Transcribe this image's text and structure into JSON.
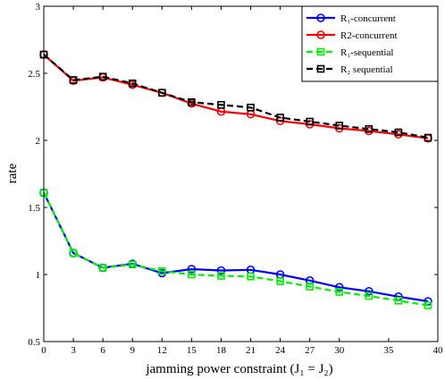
{
  "chart_data": {
    "type": "line",
    "xlabel": "jamming power constraint (J₁ = J₂)",
    "ylabel": "rate",
    "xlim": [
      0,
      40
    ],
    "ylim": [
      0.5,
      3
    ],
    "xticks": [
      0,
      3,
      6,
      9,
      12,
      15,
      18,
      21,
      24,
      27,
      30,
      35,
      40
    ],
    "yticks": [
      0.5,
      1,
      1.5,
      2,
      2.5,
      3
    ],
    "grid": false,
    "legend_position": "top-right",
    "x": [
      0,
      3,
      6,
      9,
      12,
      15,
      18,
      21,
      24,
      27,
      30,
      33,
      36,
      39
    ],
    "series": [
      {
        "name": "R₁-concurrent",
        "color": "#0000ff",
        "line_style": "solid",
        "marker": "circle",
        "values": [
          1.61,
          1.16,
          1.05,
          1.08,
          1.01,
          1.04,
          1.03,
          1.035,
          1.0,
          0.955,
          0.905,
          0.875,
          0.835,
          0.8
        ]
      },
      {
        "name": "R2-concurrent",
        "color": "#ff0000",
        "line_style": "solid",
        "marker": "circle",
        "values": [
          2.64,
          2.445,
          2.47,
          2.415,
          2.355,
          2.275,
          2.215,
          2.195,
          2.145,
          2.12,
          2.09,
          2.07,
          2.045,
          2.015
        ]
      },
      {
        "name": "R₁-sequential",
        "color": "#00ee00",
        "line_style": "dashed",
        "marker": "square",
        "values": [
          1.61,
          1.16,
          1.05,
          1.075,
          1.025,
          1.0,
          0.99,
          0.985,
          0.95,
          0.91,
          0.87,
          0.84,
          0.805,
          0.77
        ]
      },
      {
        "name": "R₂ sequential",
        "color": "#000000",
        "line_style": "dashed",
        "marker": "square",
        "values": [
          2.64,
          2.45,
          2.475,
          2.425,
          2.355,
          2.285,
          2.265,
          2.245,
          2.17,
          2.14,
          2.11,
          2.085,
          2.06,
          2.02
        ]
      }
    ]
  }
}
